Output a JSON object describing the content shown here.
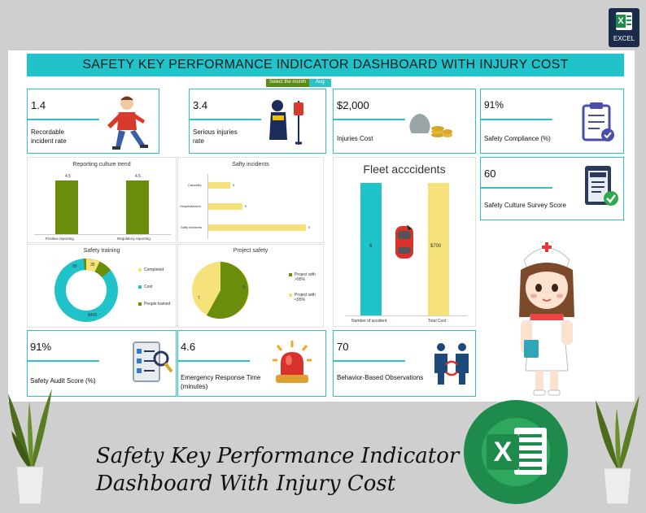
{
  "app_badge": "EXCEL",
  "title": "SAFETY KEY PERFORMANCE INDICATOR DASHBOARD WITH INJURY COST",
  "month_selector": {
    "label": "Select the month",
    "value": "Aug"
  },
  "kpis": [
    {
      "value": "1.4",
      "label": "Recordable incident rate"
    },
    {
      "value": "3.4",
      "label": "Serious injuries rate"
    },
    {
      "value": "$2,000",
      "label": "Injuries Cost"
    },
    {
      "value": "91%",
      "label": "Safety Compliance (%)"
    },
    {
      "value": "60",
      "label": "Safety Culture Survey Score"
    },
    {
      "value": "91%",
      "label": "Safety Audit Score (%)"
    },
    {
      "value": "4.6",
      "label": "Emergency Response Time (minutes)"
    },
    {
      "value": "70",
      "label": "Behavior-Based Observations"
    }
  ],
  "charts": {
    "reporting": {
      "title": "Reporting culture trend"
    },
    "incidents": {
      "title": "Safty incidents"
    },
    "training": {
      "title": "Safety training"
    },
    "project": {
      "title": "Project safety"
    },
    "fleet": {
      "title": "Fleet acccidents",
      "vals": [
        "6",
        "$700"
      ]
    }
  },
  "chart_data": [
    {
      "type": "bar",
      "title": "Reporting culture trend",
      "categories": [
        "Positive reporting",
        "Regulatory reporting"
      ],
      "values": [
        4.5,
        4.5
      ],
      "colors": [
        "#6a8d0c"
      ]
    },
    {
      "type": "bar",
      "orientation": "horizontal",
      "title": "Safty incidents",
      "categories": [
        "Causality",
        "Hospitalization",
        "Safty incidents"
      ],
      "values": [
        3,
        5,
        9
      ],
      "colors": [
        "#f6e27a"
      ]
    },
    {
      "type": "pie",
      "donut": true,
      "title": "Safety training",
      "labels": [
        "Completed",
        "Cost",
        "People trained"
      ],
      "values": [
        35,
        400,
        80
      ],
      "value_labels": [
        "35",
        "$400",
        "80"
      ],
      "colors": [
        "#f6e27a",
        "#1fc3c9",
        "#6a8d0c"
      ]
    },
    {
      "type": "pie",
      "title": "Project safety",
      "labels": [
        "Project with >95%",
        "Project with <95%"
      ],
      "values": [
        9,
        7
      ],
      "colors": [
        "#6a8d0c",
        "#f6e27a"
      ]
    },
    {
      "type": "bar",
      "title": "Fleet acccidents",
      "categories": [
        "Number of accident",
        "Total Cost"
      ],
      "values": [
        6,
        700
      ],
      "value_labels": [
        "6",
        "$700"
      ],
      "colors": [
        "#1fc3c9",
        "#f6e27a"
      ]
    }
  ],
  "footer": {
    "line1": "Safety Key Performance Indicator",
    "line2": "Dashboard With Injury Cost"
  },
  "big_logo_letter": "X",
  "colors": {
    "teal": "#1fc3c9",
    "green": "#6a8d0c",
    "yellow": "#f6e27a",
    "excel_green": "#1e8a4c"
  }
}
